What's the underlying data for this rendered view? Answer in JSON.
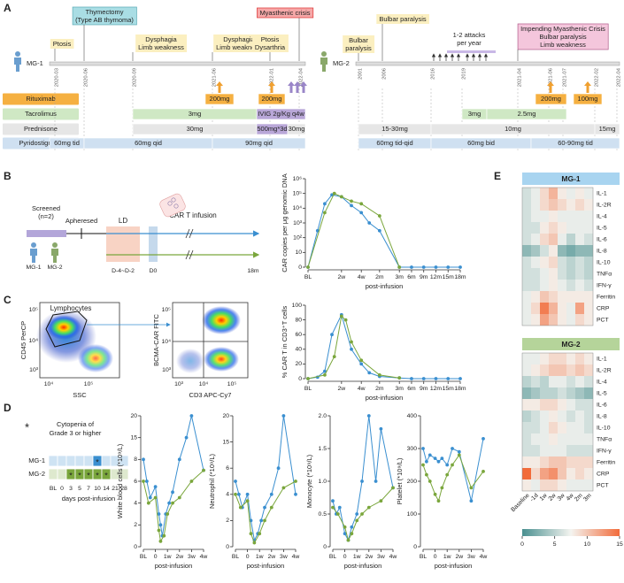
{
  "panel_labels": [
    "A",
    "B",
    "C",
    "D",
    "E"
  ],
  "timeline": {
    "treatments": [
      "Rituximab",
      "Tacrolimus",
      "Prednisone",
      "Pyridostigmine"
    ],
    "patients": [
      {
        "name": "MG-1",
        "dates": [
          "2020-03",
          "2020-06",
          "2020-09",
          "2021-06",
          "2022-01",
          "2022-04"
        ],
        "events": [
          [
            "Ptosis"
          ],
          [
            "Thymectomy",
            "(Type AB thymoma)"
          ],
          [
            "Dysphagia",
            "Limb weakness"
          ],
          [
            "Dysphagia",
            "Limb weakness"
          ],
          [
            "Ptosis",
            "Dysarthria"
          ],
          [
            "Myasthenic crisis"
          ]
        ],
        "regimens": [
          [
            "200mg",
            "200mg"
          ],
          [
            "3mg",
            "IVIG 2g/Kg q4w"
          ],
          [
            "30mg",
            "500mg*3d",
            "30mg"
          ],
          [
            "60mg tid",
            "60mg qid",
            "90mg qid"
          ]
        ]
      },
      {
        "name": "MG-2",
        "dates": [
          "2001",
          "2006",
          "2016",
          "2019",
          "2021-04",
          "2021-06",
          "2021-07",
          "2022-02",
          "2022-04"
        ],
        "events": [
          [
            "Bulbar",
            "paralysis"
          ],
          [
            "Bulbar paralysis"
          ],
          [
            "1-2 attacks",
            "per year"
          ],
          [
            "Impending Myasthenic Crisis",
            "Bulbar paralysis",
            "Limb weakness"
          ]
        ],
        "regimens": [
          [
            "200mg",
            "100mg"
          ],
          [
            "3mg",
            "2.5mg"
          ],
          [
            "15-30mg",
            "10mg",
            "15mg"
          ],
          [
            "60mg tid-qid",
            "60mg bid",
            "60-90mg tid"
          ]
        ]
      }
    ]
  },
  "schematic": {
    "screened": [
      "Screened",
      "(n=2)"
    ],
    "apheresed": "Apheresed",
    "ld": "LD",
    "infusion": "CAR T infusion",
    "ld_days": "D-4~D-2",
    "d0": "D0",
    "end": "18m",
    "patients": [
      "MG-1",
      "MG-2"
    ]
  },
  "flow": [
    {
      "gate": "Lymphocytes",
      "x_label": "SSC",
      "y_label": "CD45 PerCP",
      "xticks": [
        "10⁴",
        "10⁵"
      ],
      "yticks": [
        "10³",
        "10⁴",
        "10⁵"
      ]
    },
    {
      "x_label": "CD3 APC-Cy7",
      "y_label": "BCMA-CAR FITC",
      "xticks": [
        "10³",
        "10⁴",
        "10⁵"
      ],
      "yticks": [
        "10³",
        "10⁴",
        "10⁵"
      ]
    }
  ],
  "cytopenia": {
    "marker": "*",
    "legend": [
      "Cytopenia of",
      "Grade 3 or higher"
    ],
    "columns": [
      "BL",
      "0",
      "3",
      "5",
      "7",
      "10",
      "14",
      "21",
      "28"
    ],
    "rows": [
      {
        "name": "MG-1",
        "color": "#3a8fd0",
        "marks": [
          null,
          null,
          null,
          null,
          null,
          "*",
          null,
          null,
          null
        ]
      },
      {
        "name": "MG-2",
        "color": "#7aa63c",
        "marks": [
          null,
          null,
          "*",
          "*",
          "*",
          "*",
          "*",
          null,
          null
        ]
      }
    ],
    "x_label": "days post-infusion"
  },
  "chart_data": [
    {
      "type": "line",
      "log": true,
      "y_label": "CAR copies per μg genomic DNA",
      "x_label": "post-infusion",
      "xlim": [
        0,
        540
      ],
      "xticks": [
        {
          "value": 0,
          "label": "BL"
        },
        {
          "value": 14,
          "label": "2w"
        },
        {
          "value": 28,
          "label": "4w"
        },
        {
          "value": 60,
          "label": "2m"
        },
        {
          "value": 90,
          "label": "3m"
        },
        {
          "value": 180,
          "label": "6m"
        },
        {
          "value": 270,
          "label": "9m"
        },
        {
          "value": 365,
          "label": "12m"
        },
        {
          "value": 450,
          "label": "15m"
        },
        {
          "value": 540,
          "label": "18m"
        }
      ],
      "ylim": [
        0,
        1000000
      ],
      "yticks": [
        0,
        10,
        {
          "value": 100,
          "label": "10²"
        },
        {
          "value": 1000,
          "label": "10³"
        },
        {
          "value": 10000,
          "label": "10⁴"
        },
        {
          "value": 100000,
          "label": "10⁵"
        },
        {
          "value": 1000000,
          "label": "10⁶"
        }
      ],
      "series": [
        {
          "color": "#3a8fd0",
          "x": [
            0,
            4,
            7,
            10,
            14,
            21,
            28,
            42,
            60,
            90,
            180,
            270,
            365,
            450,
            540
          ],
          "values": [
            0,
            300,
            20000,
            80000,
            60000,
            15000,
            5000,
            1000,
            300,
            0,
            0,
            0,
            0,
            0,
            0
          ]
        },
        {
          "color": "#7aa63c",
          "x": [
            0,
            7,
            11,
            14,
            21,
            28,
            60,
            90
          ],
          "values": [
            0,
            5000,
            100000,
            60000,
            30000,
            20000,
            3000,
            0
          ]
        }
      ]
    },
    {
      "type": "line",
      "y_label": "% CAR T in CD3⁺T cells",
      "x_label": "post-infusion",
      "xlim": [
        0,
        540
      ],
      "xticks": [
        {
          "value": 0,
          "label": "BL"
        },
        {
          "value": 14,
          "label": "2w"
        },
        {
          "value": 28,
          "label": "4w"
        },
        {
          "value": 60,
          "label": "2m"
        },
        {
          "value": 90,
          "label": "3m"
        },
        {
          "value": 180,
          "label": "6m"
        },
        {
          "value": 270,
          "label": "9m"
        },
        {
          "value": 365,
          "label": "12m"
        },
        {
          "value": 450,
          "label": "15m"
        },
        {
          "value": 540,
          "label": "18m"
        }
      ],
      "ylim": [
        0,
        100
      ],
      "yticks": [
        0,
        20,
        40,
        60,
        80,
        100
      ],
      "series": [
        {
          "color": "#3a8fd0",
          "x": [
            0,
            4,
            7,
            10,
            14,
            21,
            28,
            42,
            60,
            90,
            180,
            270,
            365,
            450,
            540
          ],
          "values": [
            0,
            2,
            10,
            60,
            87,
            40,
            20,
            8,
            3,
            1,
            0,
            0,
            0,
            0,
            0
          ]
        },
        {
          "color": "#7aa63c",
          "x": [
            0,
            7,
            11,
            14,
            17,
            21,
            28,
            60,
            90
          ],
          "values": [
            0,
            5,
            30,
            85,
            80,
            50,
            25,
            5,
            1
          ]
        }
      ]
    },
    {
      "type": "line",
      "y_label": "White blood cells (*10⁹/L)",
      "x_label": "post-infusion",
      "xlim": [
        -7,
        28
      ],
      "xticks": [
        {
          "value": -7,
          "label": "BL"
        },
        0,
        {
          "value": 7,
          "label": "1w"
        },
        {
          "value": 14,
          "label": "2w"
        },
        {
          "value": 21,
          "label": "3w"
        },
        {
          "value": 28,
          "label": "4w"
        }
      ],
      "ylim": [
        0,
        20
      ],
      "yticks": [
        0,
        2,
        4,
        6,
        8,
        15,
        20
      ],
      "series": [
        {
          "color": "#3a8fd0",
          "x": [
            -7,
            -5,
            -3,
            0,
            2,
            3,
            4,
            6,
            8,
            10,
            14,
            18,
            21,
            28
          ],
          "values": [
            8,
            6,
            4.5,
            5.5,
            3,
            2,
            1,
            3,
            4,
            5,
            8,
            15,
            20,
            7
          ]
        },
        {
          "color": "#7aa63c",
          "x": [
            -7,
            -4,
            0,
            2,
            3,
            5,
            7,
            10,
            14,
            21,
            28
          ],
          "values": [
            6,
            4,
            4.5,
            1.5,
            0.5,
            1,
            3,
            4,
            4.5,
            6,
            7
          ]
        }
      ]
    },
    {
      "type": "line",
      "y_label": "Neutrophil (*10⁹/L)",
      "x_label": "post-infusion",
      "xlim": [
        -7,
        28
      ],
      "xticks": [
        {
          "value": -7,
          "label": "BL"
        },
        0,
        {
          "value": 7,
          "label": "1w"
        },
        {
          "value": 14,
          "label": "2w"
        },
        {
          "value": 21,
          "label": "3w"
        },
        {
          "value": 28,
          "label": "4w"
        }
      ],
      "ylim": [
        0,
        20
      ],
      "yticks": [
        0,
        2,
        4,
        6,
        15,
        20
      ],
      "series": [
        {
          "color": "#3a8fd0",
          "x": [
            -7,
            -5,
            -3,
            0,
            2,
            4,
            6,
            8,
            10,
            14,
            18,
            21,
            28
          ],
          "values": [
            5,
            4,
            3,
            4,
            2,
            0.5,
            1,
            2,
            3,
            4,
            6,
            20,
            4
          ]
        },
        {
          "color": "#7aa63c",
          "x": [
            -7,
            -4,
            0,
            2,
            4,
            7,
            10,
            14,
            21,
            28
          ],
          "values": [
            4,
            3,
            3.5,
            1,
            0.3,
            1,
            2,
            3,
            4.5,
            5
          ]
        }
      ]
    },
    {
      "type": "line",
      "y_label": "Monocyte (*10⁹/L)",
      "x_label": "post-infusion",
      "xlim": [
        -7,
        28
      ],
      "xticks": [
        {
          "value": -7,
          "label": "BL"
        },
        0,
        {
          "value": 7,
          "label": "1w"
        },
        {
          "value": 14,
          "label": "2w"
        },
        {
          "value": 21,
          "label": "3w"
        },
        {
          "value": 28,
          "label": "4w"
        }
      ],
      "ylim": [
        0,
        2
      ],
      "yticks": [
        0,
        0.5,
        {
          "value": 1,
          "label": "1.0"
        },
        1.5,
        {
          "value": 2,
          "label": "2.0"
        }
      ],
      "series": [
        {
          "color": "#3a8fd0",
          "x": [
            -7,
            -5,
            -3,
            0,
            2,
            4,
            7,
            10,
            14,
            18,
            21,
            28
          ],
          "values": [
            0.7,
            0.5,
            0.6,
            0.2,
            0.1,
            0.3,
            0.5,
            1,
            2,
            1,
            1.8,
            0.9
          ]
        },
        {
          "color": "#7aa63c",
          "x": [
            -7,
            -4,
            0,
            2,
            4,
            7,
            10,
            14,
            21,
            28
          ],
          "values": [
            0.6,
            0.5,
            0.3,
            0.1,
            0.2,
            0.4,
            0.5,
            0.6,
            0.7,
            0.9
          ]
        }
      ]
    },
    {
      "type": "line",
      "y_label": "Platelet (*10⁹/L)",
      "x_label": "post-infusion",
      "xlim": [
        -7,
        28
      ],
      "xticks": [
        {
          "value": -7,
          "label": "BL"
        },
        0,
        {
          "value": 7,
          "label": "1w"
        },
        {
          "value": 14,
          "label": "2w"
        },
        {
          "value": 21,
          "label": "3w"
        },
        {
          "value": 28,
          "label": "4w"
        }
      ],
      "ylim": [
        0,
        400
      ],
      "yticks": [
        0,
        100,
        200,
        300,
        400
      ],
      "series": [
        {
          "color": "#3a8fd0",
          "x": [
            -7,
            -5,
            -3,
            0,
            2,
            4,
            7,
            10,
            14,
            21,
            28
          ],
          "values": [
            300,
            260,
            280,
            270,
            260,
            270,
            250,
            300,
            290,
            140,
            330
          ]
        },
        {
          "color": "#7aa63c",
          "x": [
            -7,
            -5,
            -3,
            0,
            2,
            4,
            7,
            10,
            14,
            21,
            28
          ],
          "values": [
            250,
            220,
            200,
            160,
            140,
            180,
            220,
            250,
            280,
            180,
            230
          ]
        }
      ]
    },
    {
      "type": "heatmap",
      "title": "MG-1",
      "title_color": "#a8d4f0",
      "zlim": [
        0,
        15
      ],
      "colors": [
        "#4a9090",
        "#f4f4f0",
        "#f26b3a"
      ],
      "rows": [
        "IL-1",
        "IL-2R",
        "IL-4",
        "IL-5",
        "IL-6",
        "IL-8",
        "IL-10",
        "TNFα",
        "IFN-γ",
        "Ferritin",
        "CRP",
        "PCT"
      ],
      "values": [
        [
          6,
          7,
          9,
          11,
          8,
          7,
          8,
          7
        ],
        [
          6,
          7,
          9,
          10,
          9,
          8,
          9,
          8
        ],
        [
          6,
          7,
          7,
          8,
          7,
          7,
          7,
          7
        ],
        [
          6,
          6,
          8,
          9,
          8,
          7,
          7,
          7
        ],
        [
          6,
          7,
          9,
          10,
          7,
          5,
          7,
          6
        ],
        [
          3,
          4,
          6,
          8,
          3,
          2,
          3,
          3
        ],
        [
          6,
          7,
          8,
          9,
          6,
          5,
          6,
          5
        ],
        [
          6,
          6,
          7,
          8,
          6,
          5,
          6,
          5
        ],
        [
          6,
          6,
          7,
          8,
          7,
          6,
          7,
          6
        ],
        [
          7,
          8,
          10,
          9,
          8,
          8,
          8,
          8
        ],
        [
          7,
          9,
          14,
          11,
          8,
          7,
          12,
          8
        ],
        [
          7,
          8,
          12,
          10,
          8,
          7,
          9,
          8
        ]
      ]
    },
    {
      "type": "heatmap",
      "title": "MG-2",
      "title_color": "#b5d49a",
      "zlim": [
        0,
        15
      ],
      "zticks": [
        0,
        5,
        10,
        15
      ],
      "colors": [
        "#4a9090",
        "#f4f4f0",
        "#f26b3a"
      ],
      "rows": [
        "IL-1",
        "IL-2R",
        "IL-4",
        "IL-5",
        "IL-6",
        "IL-8",
        "IL-10",
        "TNFα",
        "IFN-γ",
        "Ferritin",
        "CRP",
        "PCT"
      ],
      "columns": [
        "Baseline",
        "-1d",
        "1w",
        "2w",
        "3w",
        "4w",
        "2m",
        "3m"
      ],
      "values": [
        [
          7,
          7,
          8,
          9,
          9,
          8,
          9,
          8
        ],
        [
          7,
          8,
          9,
          10,
          10,
          9,
          10,
          9
        ],
        [
          5,
          6,
          5,
          7,
          7,
          6,
          7,
          6
        ],
        [
          3,
          4,
          5,
          5,
          6,
          5,
          4,
          3
        ],
        [
          8,
          8,
          9,
          9,
          8,
          7,
          6,
          6
        ],
        [
          5,
          6,
          7,
          8,
          7,
          6,
          7,
          6
        ],
        [
          6,
          6,
          7,
          9,
          8,
          7,
          7,
          6
        ],
        [
          6,
          7,
          7,
          8,
          7,
          7,
          7,
          7
        ],
        [
          6,
          6,
          7,
          7,
          7,
          6,
          6,
          6
        ],
        [
          8,
          8,
          9,
          10,
          10,
          9,
          9,
          9
        ],
        [
          15,
          9,
          12,
          13,
          10,
          8,
          9,
          8
        ],
        [
          8,
          7,
          9,
          9,
          8,
          7,
          7,
          7
        ]
      ]
    }
  ]
}
